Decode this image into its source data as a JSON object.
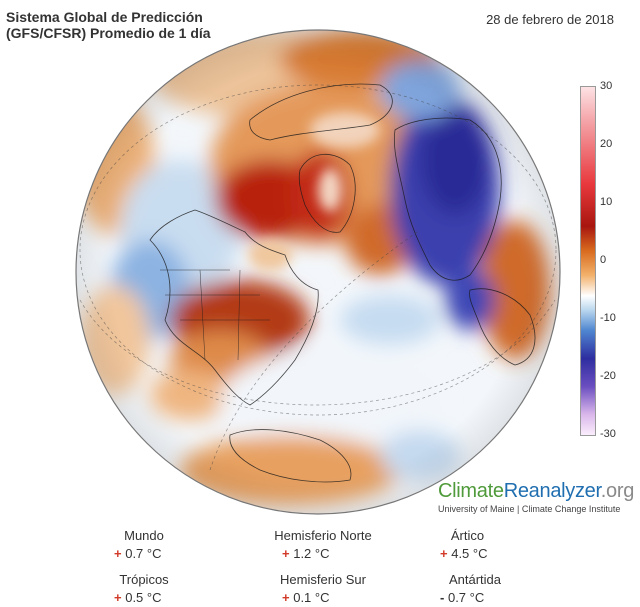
{
  "title_line1": "Sistema Global de Predicción",
  "title_line2": "(GFS/CFSR) Promedio de 1 día",
  "date": "28 de febrero de 2018",
  "colorbar": {
    "ticks": [
      "30",
      "20",
      "10",
      "0",
      "-10",
      "-20",
      "-30"
    ],
    "colors": {
      "warm_extreme": "#fde2e4",
      "hot": "#a8160f",
      "warm": "#f2b06a",
      "neutral": "#ffffff",
      "cool": "#4f86d0",
      "cold": "#2e2ea0",
      "cold_extreme": "#fbeefc"
    }
  },
  "logo": {
    "part1": "Climate",
    "part2": "Reanalyzer",
    "part3": ".org",
    "subtitle": "University of Maine | Climate Change Institute"
  },
  "stats": [
    {
      "label": "Mundo",
      "sign": "+",
      "value": "0.7 °C"
    },
    {
      "label": "Hemisferio Norte",
      "sign": "+",
      "value": "1.2 °C"
    },
    {
      "label": "Ártico",
      "sign": "+",
      "value": "4.5 °C"
    },
    {
      "label": "Trópicos",
      "sign": "+",
      "value": "0.5 °C"
    },
    {
      "label": "Hemisferio Sur",
      "sign": "+",
      "value": "0.1 °C"
    },
    {
      "label": "Antártida",
      "sign": "-",
      "value": "0.7 °C"
    }
  ]
}
